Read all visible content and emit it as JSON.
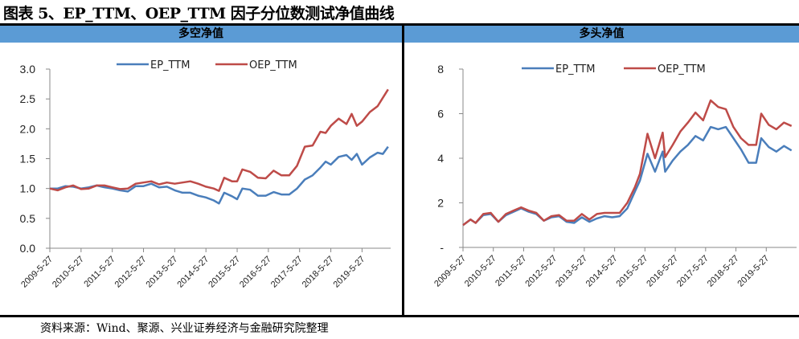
{
  "title": "图表 5、EP_TTM、OEP_TTM 因子分位数测试净值曲线",
  "footer": "资料来源：Wind、聚源、兴业证券经济与金融研究院整理",
  "colors": {
    "EP_TTM": "#4a7ebb",
    "OEP_TTM": "#be4b48",
    "header_bg": "#5b9bd5"
  },
  "chart_data": [
    {
      "type": "line",
      "title": "多空净值",
      "ylim": [
        0,
        3.0
      ],
      "yticks": [
        "0.0",
        "0.5",
        "1.0",
        "1.5",
        "2.0",
        "2.5",
        "3.0"
      ],
      "xticks": [
        "2009-5-27",
        "2010-5-27",
        "2011-5-27",
        "2012-5-27",
        "2013-5-27",
        "2014-5-27",
        "2015-5-27",
        "2016-5-27",
        "2017-5-27",
        "2018-5-27",
        "2019-5-27"
      ],
      "xrange": [
        "2009-05",
        "2020-04"
      ],
      "grid": false,
      "legend": "top",
      "x": [
        "2009-05",
        "2009-08",
        "2009-11",
        "2010-02",
        "2010-05",
        "2010-08",
        "2010-11",
        "2011-02",
        "2011-05",
        "2011-08",
        "2011-11",
        "2012-02",
        "2012-05",
        "2012-08",
        "2012-11",
        "2013-02",
        "2013-05",
        "2013-08",
        "2013-11",
        "2014-02",
        "2014-05",
        "2014-08",
        "2014-10",
        "2014-12",
        "2015-03",
        "2015-05",
        "2015-07",
        "2015-10",
        "2016-01",
        "2016-04",
        "2016-07",
        "2016-10",
        "2017-01",
        "2017-04",
        "2017-07",
        "2017-10",
        "2018-01",
        "2018-03",
        "2018-05",
        "2018-08",
        "2018-11",
        "2019-01",
        "2019-03",
        "2019-05",
        "2019-08",
        "2019-11",
        "2020-01",
        "2020-03"
      ],
      "series": [
        {
          "name": "EP_TTM",
          "values": [
            1.0,
            1.0,
            1.04,
            1.03,
            1.0,
            1.02,
            1.05,
            1.02,
            1.0,
            0.97,
            0.95,
            1.04,
            1.04,
            1.08,
            1.02,
            1.03,
            0.97,
            0.93,
            0.93,
            0.88,
            0.85,
            0.8,
            0.75,
            0.93,
            0.87,
            0.82,
            1.0,
            0.98,
            0.88,
            0.88,
            0.94,
            0.9,
            0.9,
            1.0,
            1.15,
            1.22,
            1.35,
            1.45,
            1.4,
            1.53,
            1.56,
            1.48,
            1.58,
            1.4,
            1.52,
            1.6,
            1.58,
            1.7
          ]
        },
        {
          "name": "OEP_TTM",
          "values": [
            1.0,
            0.97,
            1.02,
            1.05,
            0.99,
            1.0,
            1.05,
            1.05,
            1.02,
            0.99,
            1.0,
            1.08,
            1.1,
            1.12,
            1.07,
            1.1,
            1.08,
            1.1,
            1.12,
            1.08,
            1.03,
            1.0,
            0.96,
            1.18,
            1.12,
            1.12,
            1.32,
            1.28,
            1.18,
            1.17,
            1.3,
            1.22,
            1.22,
            1.38,
            1.7,
            1.72,
            1.95,
            1.93,
            2.05,
            2.17,
            2.08,
            2.25,
            2.05,
            2.12,
            2.28,
            2.38,
            2.52,
            2.66
          ]
        }
      ]
    },
    {
      "type": "line",
      "title": "多头净值",
      "ylim": [
        0,
        8
      ],
      "yticks": [
        "-",
        "2",
        "4",
        "6",
        "8"
      ],
      "xticks": [
        "2009-5-27",
        "2010-5-27",
        "2011-5-27",
        "2012-5-27",
        "2013-5-27",
        "2014-5-27",
        "2015-5-27",
        "2016-5-27",
        "2017-5-27",
        "2018-5-27",
        "2019-5-27"
      ],
      "xrange": [
        "2009-05",
        "2020-05"
      ],
      "grid": false,
      "legend": "top",
      "x": [
        "2009-05",
        "2009-08",
        "2009-10",
        "2010-01",
        "2010-04",
        "2010-07",
        "2010-10",
        "2011-01",
        "2011-04",
        "2011-07",
        "2011-10",
        "2012-01",
        "2012-04",
        "2012-07",
        "2012-10",
        "2013-01",
        "2013-04",
        "2013-07",
        "2013-10",
        "2014-01",
        "2014-04",
        "2014-07",
        "2014-10",
        "2015-01",
        "2015-03",
        "2015-06",
        "2015-09",
        "2015-12",
        "2016-01",
        "2016-04",
        "2016-07",
        "2016-10",
        "2017-01",
        "2017-04",
        "2017-07",
        "2017-10",
        "2018-01",
        "2018-04",
        "2018-07",
        "2018-10",
        "2019-01",
        "2019-03",
        "2019-06",
        "2019-09",
        "2019-12",
        "2020-03"
      ],
      "series": [
        {
          "name": "EP_TTM",
          "values": [
            1.0,
            1.25,
            1.1,
            1.45,
            1.5,
            1.15,
            1.45,
            1.6,
            1.75,
            1.6,
            1.5,
            1.2,
            1.35,
            1.4,
            1.15,
            1.1,
            1.35,
            1.15,
            1.3,
            1.4,
            1.35,
            1.4,
            1.75,
            2.5,
            3.0,
            4.2,
            3.4,
            4.3,
            3.4,
            3.9,
            4.3,
            4.6,
            5.0,
            4.8,
            5.4,
            5.3,
            5.4,
            4.9,
            4.4,
            3.8,
            3.8,
            4.9,
            4.5,
            4.3,
            4.55,
            4.35
          ]
        },
        {
          "name": "OEP_TTM",
          "values": [
            1.0,
            1.25,
            1.1,
            1.5,
            1.55,
            1.15,
            1.5,
            1.65,
            1.8,
            1.65,
            1.55,
            1.2,
            1.4,
            1.45,
            1.2,
            1.2,
            1.5,
            1.25,
            1.5,
            1.55,
            1.55,
            1.55,
            2.0,
            2.7,
            3.3,
            5.1,
            4.0,
            5.15,
            4.05,
            4.6,
            5.2,
            5.6,
            6.05,
            5.7,
            6.6,
            6.3,
            6.2,
            5.4,
            4.9,
            4.6,
            4.6,
            6.0,
            5.5,
            5.3,
            5.6,
            5.45
          ]
        }
      ]
    }
  ]
}
